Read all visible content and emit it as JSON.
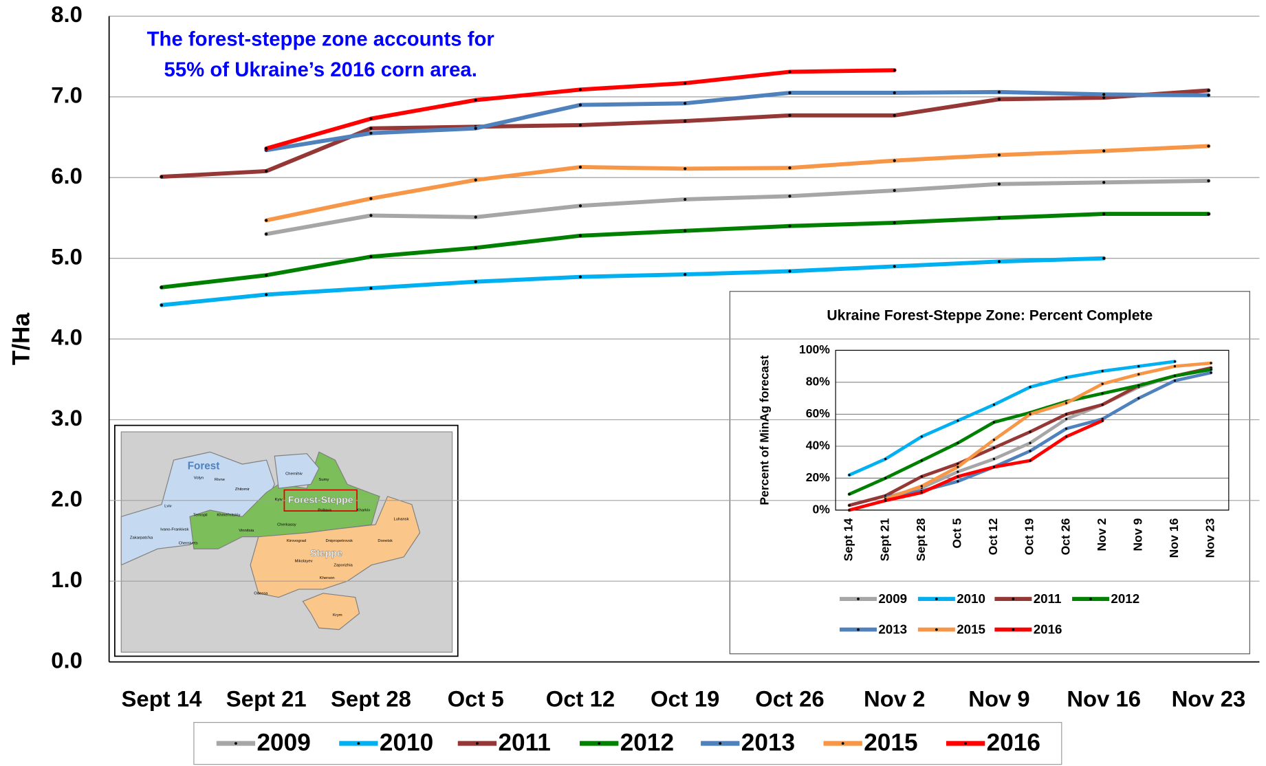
{
  "chart_data": [
    {
      "type": "line",
      "ylabel": "T/Ha",
      "annotation": [
        "The forest-steppe zone accounts for",
        "55% of Ukraine’s 2016 corn area."
      ],
      "categories": [
        "Sept 14",
        "Sept 21",
        "Sept 28",
        "Oct 5",
        "Oct 12",
        "Oct 19",
        "Oct 26",
        "Nov 2",
        "Nov 9",
        "Nov 16",
        "Nov 23"
      ],
      "ylim": [
        0,
        8
      ],
      "yticks": [
        {
          "value": 0,
          "label": "0.0"
        },
        {
          "value": 1,
          "label": "1.0"
        },
        {
          "value": 2,
          "label": "2.0"
        },
        {
          "value": 3,
          "label": "3.0"
        },
        {
          "value": 4,
          "label": "4.0"
        },
        {
          "value": 5,
          "label": "5.0"
        },
        {
          "value": 6,
          "label": "6.0"
        },
        {
          "value": 7,
          "label": "7.0"
        },
        {
          "value": 8,
          "label": "8.0"
        }
      ],
      "grid": true,
      "legend": "bottom",
      "series": [
        {
          "name": "2009",
          "color": "#a6a6a6",
          "values": [
            null,
            5.3,
            5.53,
            5.51,
            5.65,
            5.73,
            5.77,
            5.84,
            5.92,
            5.94,
            5.96
          ]
        },
        {
          "name": "2010",
          "color": "#00b0f0",
          "values": [
            4.42,
            4.55,
            4.63,
            4.71,
            4.77,
            4.8,
            4.84,
            4.9,
            4.96,
            5.0,
            null
          ]
        },
        {
          "name": "2011",
          "color": "#953735",
          "values": [
            6.01,
            6.08,
            6.61,
            6.63,
            6.65,
            6.7,
            6.77,
            6.77,
            6.97,
            6.99,
            7.08
          ]
        },
        {
          "name": "2012",
          "color": "#008000",
          "values": [
            4.64,
            4.79,
            5.02,
            5.13,
            5.28,
            5.34,
            5.4,
            5.44,
            5.5,
            5.55,
            5.55
          ]
        },
        {
          "name": "2013",
          "color": "#4f81bd",
          "values": [
            null,
            6.34,
            6.55,
            6.61,
            6.9,
            6.92,
            7.05,
            7.05,
            7.06,
            7.03,
            7.02
          ]
        },
        {
          "name": "2015",
          "color": "#f79646",
          "values": [
            null,
            5.47,
            5.74,
            5.97,
            6.13,
            6.11,
            6.12,
            6.21,
            6.28,
            6.33,
            6.39
          ]
        },
        {
          "name": "2016",
          "color": "#ff0000",
          "values": [
            null,
            6.36,
            6.73,
            6.96,
            7.09,
            7.17,
            7.31,
            7.33,
            null,
            null,
            null
          ]
        }
      ]
    },
    {
      "type": "line",
      "title": "Ukraine Forest-Steppe Zone: Percent Complete",
      "ylabel": "Percent of MinAg forecast",
      "categories": [
        "Sept 14",
        "Sept 21",
        "Sept 28",
        "Oct 5",
        "Oct 12",
        "Oct 19",
        "Oct 26",
        "Nov 2",
        "Nov 9",
        "Nov 16",
        "Nov 23"
      ],
      "ylim": [
        0,
        100
      ],
      "yticks": [
        {
          "value": 0,
          "label": "0%"
        },
        {
          "value": 20,
          "label": "20%"
        },
        {
          "value": 40,
          "label": "40%"
        },
        {
          "value": 60,
          "label": "60%"
        },
        {
          "value": 80,
          "label": "80%"
        },
        {
          "value": 100,
          "label": "100%"
        }
      ],
      "grid": true,
      "legend": "bottom",
      "series": [
        {
          "name": "2009",
          "color": "#a6a6a6",
          "values": [
            null,
            8,
            14,
            24,
            32,
            42,
            57,
            66,
            77,
            84,
            88
          ]
        },
        {
          "name": "2010",
          "color": "#00b0f0",
          "values": [
            22,
            32,
            46,
            56,
            66,
            77,
            83,
            87,
            90,
            93,
            null
          ]
        },
        {
          "name": "2011",
          "color": "#953735",
          "values": [
            3,
            9,
            21,
            29,
            39,
            49,
            60,
            66,
            78,
            84,
            89
          ]
        },
        {
          "name": "2012",
          "color": "#008000",
          "values": [
            10,
            20,
            31,
            42,
            55,
            61,
            68,
            73,
            78,
            84,
            88
          ]
        },
        {
          "name": "2013",
          "color": "#4f81bd",
          "values": [
            null,
            8,
            12,
            18,
            27,
            37,
            51,
            57,
            70,
            81,
            86
          ]
        },
        {
          "name": "2015",
          "color": "#f79646",
          "values": [
            null,
            7,
            15,
            27,
            44,
            60,
            67,
            79,
            85,
            90,
            92
          ]
        },
        {
          "name": "2016",
          "color": "#ff0000",
          "values": [
            0,
            6,
            11,
            21,
            27,
            31,
            46,
            56,
            null,
            null,
            null
          ]
        }
      ]
    }
  ],
  "map": {
    "labels": [
      "Forest",
      "Forest-Steppe",
      "Steppe",
      "Volyn",
      "Rivne",
      "Zhitomir",
      "Chernihiv",
      "Sumy",
      "Kyiv",
      "Poltava",
      "Kharkiv",
      "Lviv",
      "Ternopil",
      "Khmel'nitskiy",
      "Vinnitsia",
      "Ivano-Frankivsk",
      "Zakarpats'ka",
      "Chernivets",
      "Cherkassy",
      "Kirovograd",
      "Dnipropetrovsk",
      "Donetsk",
      "Luhansk",
      "Mikolayev",
      "Zaporizhia",
      "Kherson",
      "Odessa",
      "Krym"
    ]
  }
}
